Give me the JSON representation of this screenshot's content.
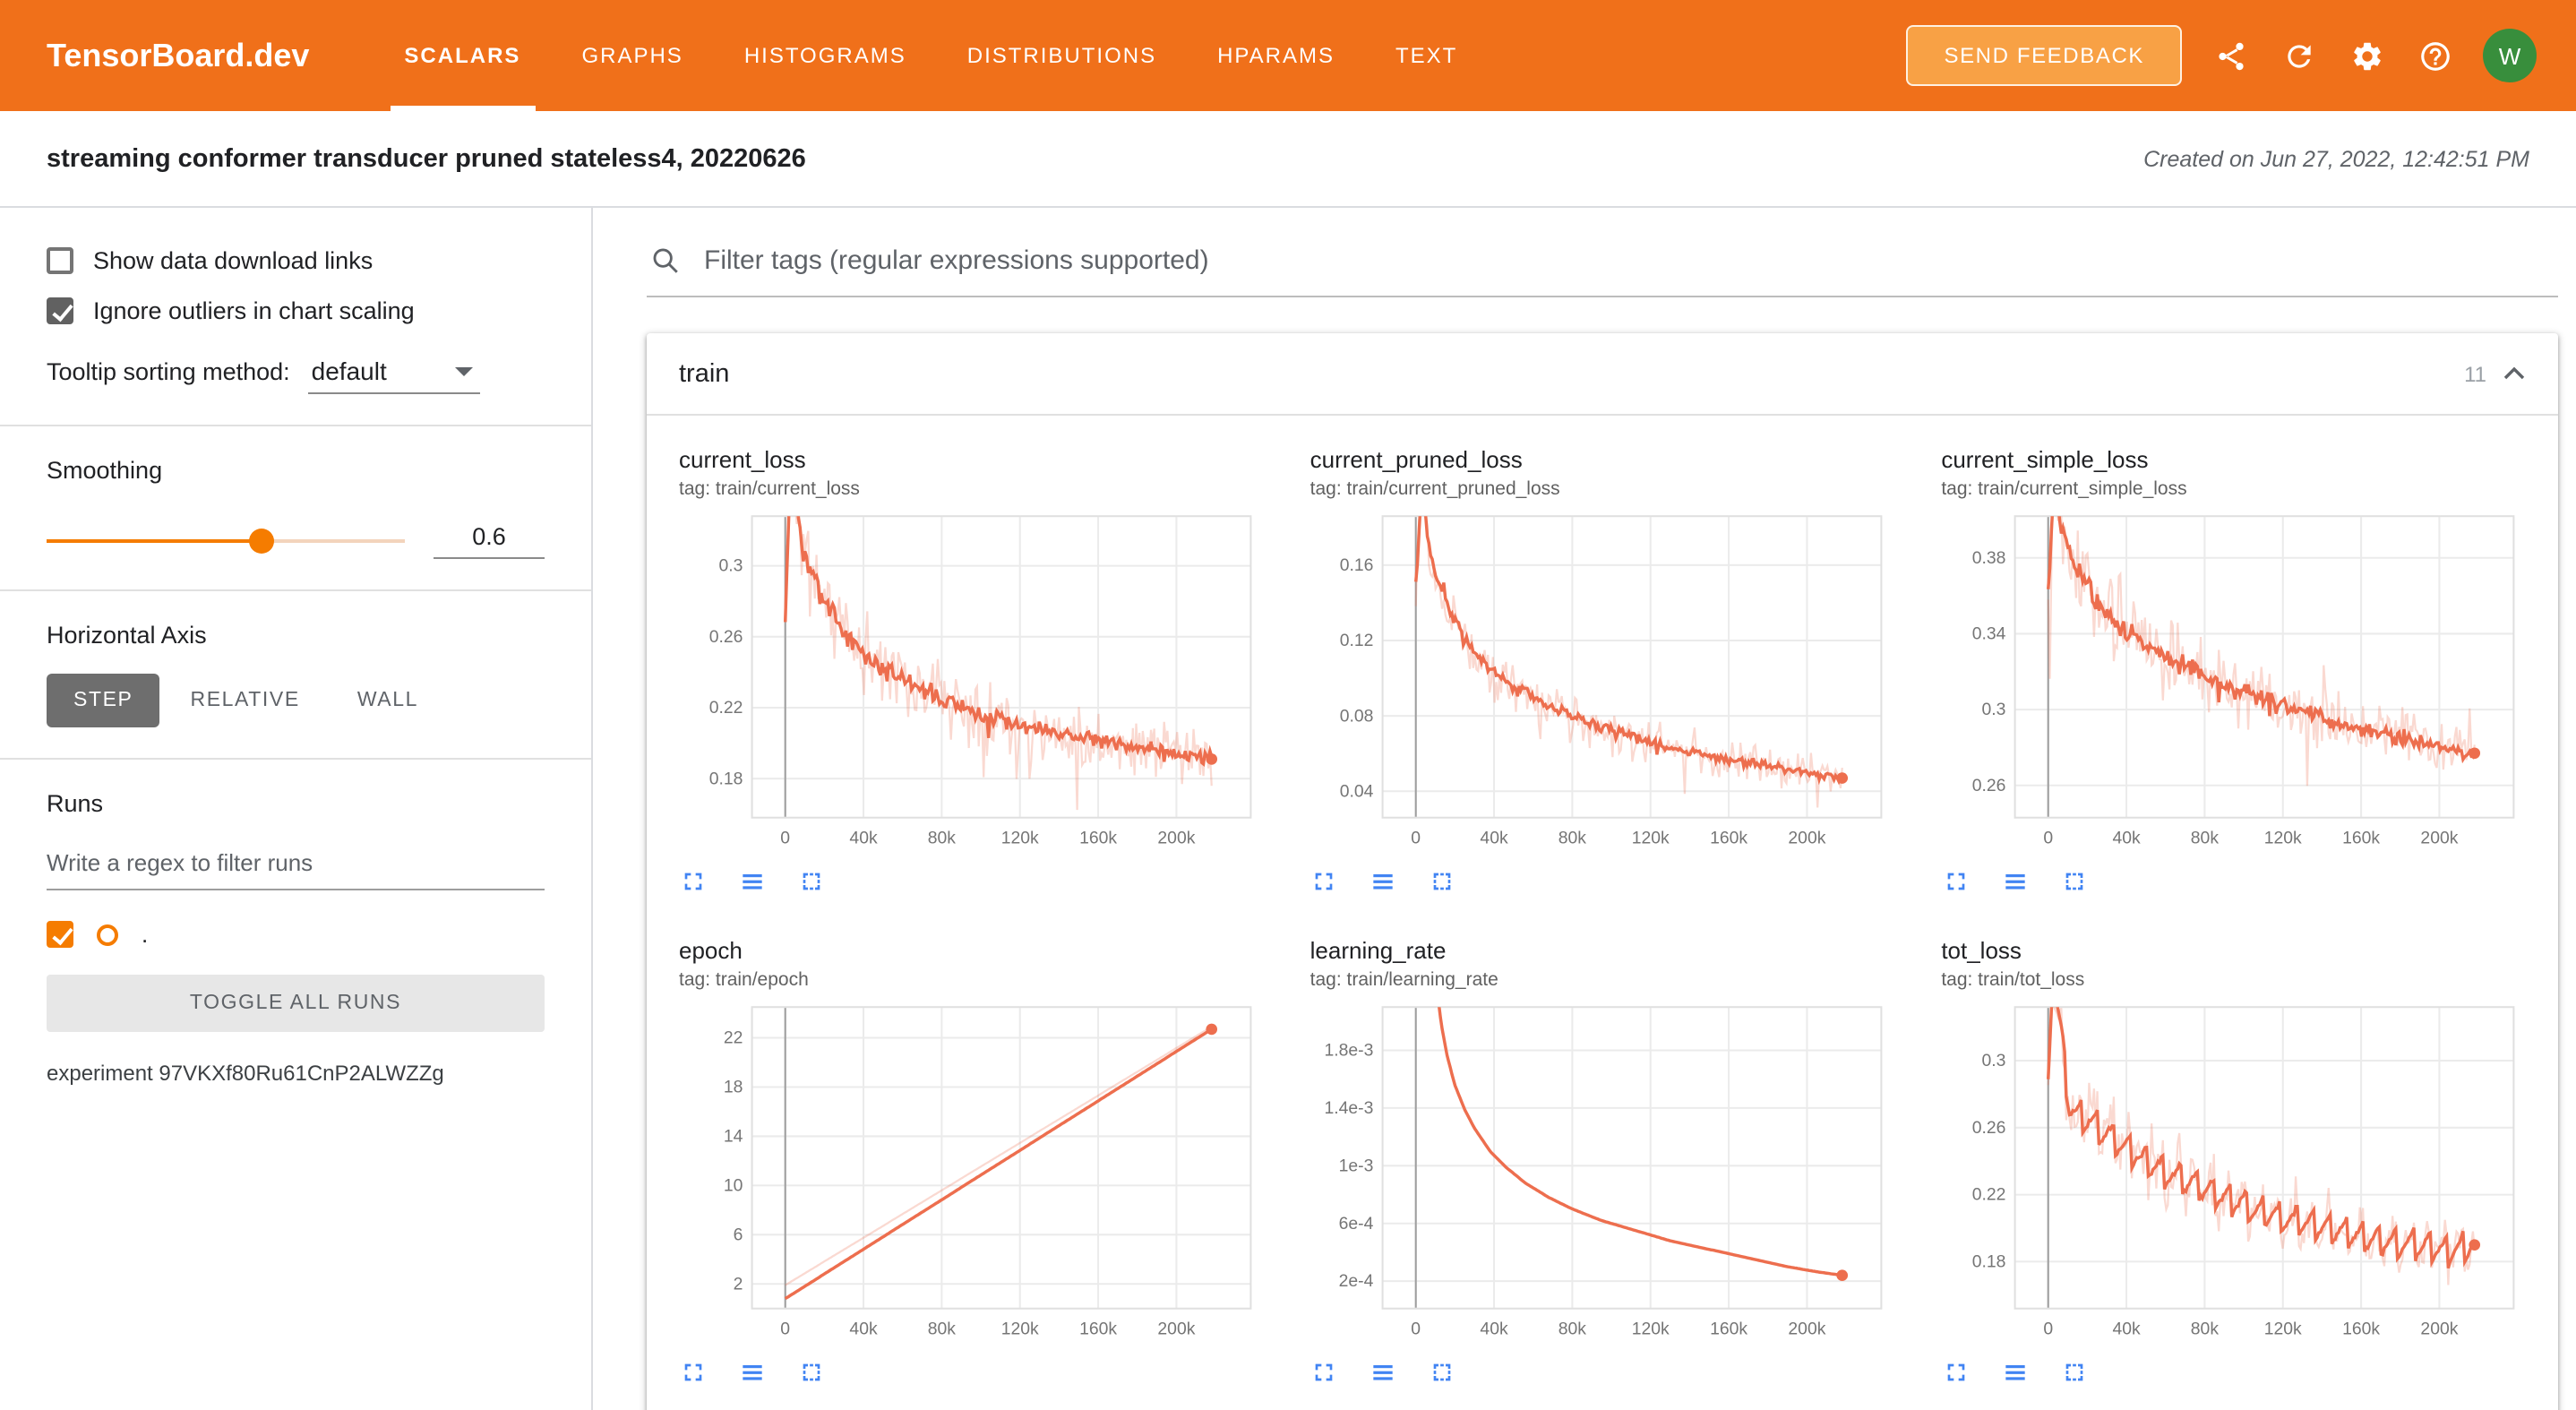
{
  "colors": {
    "header_bg": "#f0701a",
    "feedback_bg": "#f8a145",
    "accent": "#f57c00",
    "line": "#ed6e4e",
    "icon_blue": "#4184f3",
    "avatar_bg": "#388e3c"
  },
  "header": {
    "logo": "TensorBoard.dev",
    "tabs": [
      {
        "label": "SCALARS",
        "active": true
      },
      {
        "label": "GRAPHS",
        "active": false
      },
      {
        "label": "HISTOGRAMS",
        "active": false
      },
      {
        "label": "DISTRIBUTIONS",
        "active": false
      },
      {
        "label": "HPARAMS",
        "active": false
      },
      {
        "label": "TEXT",
        "active": false
      }
    ],
    "send_feedback": "SEND FEEDBACK",
    "avatar": "W"
  },
  "subheader": {
    "title": "streaming conformer transducer pruned stateless4, 20220626",
    "created": "Created on Jun 27, 2022, 12:42:51 PM"
  },
  "sidebar": {
    "show_download": {
      "label": "Show data download links",
      "checked": false
    },
    "ignore_outliers": {
      "label": "Ignore outliers in chart scaling",
      "checked": true
    },
    "tooltip_sort": {
      "label": "Tooltip sorting method:",
      "value": "default"
    },
    "smoothing": {
      "label": "Smoothing",
      "value": "0.6"
    },
    "haxis": {
      "label": "Horizontal Axis",
      "options": [
        "STEP",
        "RELATIVE",
        "WALL"
      ],
      "selected": "STEP"
    },
    "runs": {
      "label": "Runs",
      "filter_placeholder": "Write a regex to filter runs",
      "run_name": ".",
      "run_checked": true,
      "toggle_all": "TOGGLE ALL RUNS",
      "experiment": "experiment 97VKXf80Ru61CnP2ALWZZg"
    }
  },
  "main": {
    "filter_placeholder": "Filter tags (regular expressions supported)",
    "card": {
      "title": "train",
      "count": "11"
    }
  },
  "chart_data": [
    {
      "type": "line",
      "name": "current_loss",
      "tag": "tag: train/current_loss",
      "x_ticks": [
        0,
        40000,
        80000,
        120000,
        160000,
        200000
      ],
      "x_tick_labels": [
        "0",
        "40k",
        "80k",
        "120k",
        "160k",
        "200k"
      ],
      "x_range": [
        -17000,
        238000
      ],
      "y_ticks": [
        0.18,
        0.22,
        0.26,
        0.3
      ],
      "y_tick_labels": [
        "0.18",
        "0.22",
        "0.26",
        "0.3"
      ],
      "y_range": [
        0.158,
        0.328
      ],
      "smoothed": {
        "points": [
          [
            0,
            0.27
          ],
          [
            3000,
            0.37
          ],
          [
            6000,
            0.33
          ],
          [
            10000,
            0.305
          ],
          [
            16000,
            0.288
          ],
          [
            24000,
            0.272
          ],
          [
            32000,
            0.26
          ],
          [
            40000,
            0.251
          ],
          [
            52000,
            0.241
          ],
          [
            64000,
            0.233
          ],
          [
            76000,
            0.227
          ],
          [
            88000,
            0.221
          ],
          [
            100000,
            0.217
          ],
          [
            115000,
            0.212
          ],
          [
            130000,
            0.208
          ],
          [
            145000,
            0.204
          ],
          [
            160000,
            0.201
          ],
          [
            175000,
            0.199
          ],
          [
            190000,
            0.196
          ],
          [
            205000,
            0.193
          ],
          [
            218000,
            0.191
          ]
        ],
        "noise": 0.0065,
        "seed": 3
      },
      "raw": {
        "noise": 0.026,
        "seed": 11
      },
      "end_dot": true
    },
    {
      "type": "line",
      "name": "current_pruned_loss",
      "tag": "tag: train/current_pruned_loss",
      "x_ticks": [
        0,
        40000,
        80000,
        120000,
        160000,
        200000
      ],
      "x_tick_labels": [
        "0",
        "40k",
        "80k",
        "120k",
        "160k",
        "200k"
      ],
      "x_range": [
        -17000,
        238000
      ],
      "y_ticks": [
        0.04,
        0.08,
        0.12,
        0.16
      ],
      "y_tick_labels": [
        "0.04",
        "0.08",
        "0.12",
        "0.16"
      ],
      "y_range": [
        0.026,
        0.186
      ],
      "smoothed": {
        "points": [
          [
            0,
            0.15
          ],
          [
            3000,
            0.2
          ],
          [
            6000,
            0.175
          ],
          [
            10000,
            0.155
          ],
          [
            16000,
            0.138
          ],
          [
            24000,
            0.122
          ],
          [
            32000,
            0.111
          ],
          [
            40000,
            0.103
          ],
          [
            52000,
            0.094
          ],
          [
            64000,
            0.087
          ],
          [
            76000,
            0.081
          ],
          [
            88000,
            0.076
          ],
          [
            100000,
            0.072
          ],
          [
            115000,
            0.067
          ],
          [
            130000,
            0.063
          ],
          [
            145000,
            0.06
          ],
          [
            160000,
            0.057
          ],
          [
            175000,
            0.054
          ],
          [
            190000,
            0.052
          ],
          [
            205000,
            0.049
          ],
          [
            218000,
            0.047
          ]
        ],
        "noise": 0.004,
        "seed": 4
      },
      "raw": {
        "noise": 0.016,
        "seed": 12
      },
      "end_dot": true
    },
    {
      "type": "line",
      "name": "current_simple_loss",
      "tag": "tag: train/current_simple_loss",
      "x_ticks": [
        0,
        40000,
        80000,
        120000,
        160000,
        200000
      ],
      "x_tick_labels": [
        "0",
        "40k",
        "80k",
        "120k",
        "160k",
        "200k"
      ],
      "x_range": [
        -17000,
        238000
      ],
      "y_ticks": [
        0.26,
        0.3,
        0.34,
        0.38
      ],
      "y_tick_labels": [
        "0.26",
        "0.3",
        "0.34",
        "0.38"
      ],
      "y_range": [
        0.243,
        0.402
      ],
      "smoothed": {
        "points": [
          [
            0,
            0.36
          ],
          [
            3000,
            0.42
          ],
          [
            6000,
            0.4
          ],
          [
            10000,
            0.385
          ],
          [
            16000,
            0.372
          ],
          [
            24000,
            0.359
          ],
          [
            32000,
            0.349
          ],
          [
            40000,
            0.342
          ],
          [
            52000,
            0.333
          ],
          [
            64000,
            0.326
          ],
          [
            76000,
            0.32
          ],
          [
            88000,
            0.314
          ],
          [
            100000,
            0.31
          ],
          [
            115000,
            0.304
          ],
          [
            130000,
            0.299
          ],
          [
            145000,
            0.294
          ],
          [
            160000,
            0.29
          ],
          [
            175000,
            0.287
          ],
          [
            190000,
            0.283
          ],
          [
            205000,
            0.279
          ],
          [
            218000,
            0.277
          ]
        ],
        "noise": 0.0065,
        "seed": 5
      },
      "raw": {
        "noise": 0.024,
        "seed": 13
      },
      "end_dot": true
    },
    {
      "type": "line",
      "name": "epoch",
      "tag": "tag: train/epoch",
      "x_ticks": [
        0,
        40000,
        80000,
        120000,
        160000,
        200000
      ],
      "x_tick_labels": [
        "0",
        "40k",
        "80k",
        "120k",
        "160k",
        "200k"
      ],
      "x_range": [
        -17000,
        238000
      ],
      "y_ticks": [
        2,
        6,
        10,
        14,
        18,
        22
      ],
      "y_tick_labels": [
        "2",
        "6",
        "10",
        "14",
        "18",
        "22"
      ],
      "y_range": [
        0,
        24.5
      ],
      "smoothed": {
        "points": [
          [
            0,
            0.8
          ],
          [
            218000,
            22.7
          ]
        ],
        "noise": 0,
        "seed": 1
      },
      "raw": {
        "points": [
          [
            0,
            1.9
          ],
          [
            218000,
            22.9
          ]
        ],
        "noise": 0,
        "seed": 2
      },
      "end_dot": true
    },
    {
      "type": "line",
      "name": "learning_rate",
      "tag": "tag: train/learning_rate",
      "x_ticks": [
        0,
        40000,
        80000,
        120000,
        160000,
        200000
      ],
      "x_tick_labels": [
        "0",
        "40k",
        "80k",
        "120k",
        "160k",
        "200k"
      ],
      "x_range": [
        -17000,
        238000
      ],
      "y_ticks": [
        0.0002,
        0.0006,
        0.001,
        0.0014,
        0.0018
      ],
      "y_tick_labels": [
        "2e-4",
        "6e-4",
        "1e-3",
        "1.4e-3",
        "1.8e-3"
      ],
      "y_range": [
        1e-05,
        0.0021
      ],
      "smoothed": {
        "points": [
          [
            0,
            0.006
          ],
          [
            4000,
            0.0042
          ],
          [
            7000,
            0.003
          ],
          [
            9000,
            0.00252
          ],
          [
            11000,
            0.0022
          ],
          [
            13000,
            0.00198
          ],
          [
            16000,
            0.00176
          ],
          [
            20000,
            0.00156
          ],
          [
            25000,
            0.00139
          ],
          [
            30000,
            0.00126
          ],
          [
            38000,
            0.0011
          ],
          [
            46000,
            0.00099
          ],
          [
            56000,
            0.00088
          ],
          [
            68000,
            0.00078
          ],
          [
            80000,
            0.0007
          ],
          [
            95000,
            0.00062
          ],
          [
            110000,
            0.00056
          ],
          [
            130000,
            0.00048
          ],
          [
            150000,
            0.00042
          ],
          [
            170000,
            0.00036
          ],
          [
            190000,
            0.0003
          ],
          [
            205000,
            0.000265
          ],
          [
            218000,
            0.00024
          ]
        ],
        "noise": 0,
        "seed": 1
      },
      "raw": null,
      "end_dot": true
    },
    {
      "type": "line",
      "name": "tot_loss",
      "tag": "tag: train/tot_loss",
      "x_ticks": [
        0,
        40000,
        80000,
        120000,
        160000,
        200000
      ],
      "x_tick_labels": [
        "0",
        "40k",
        "80k",
        "120k",
        "160k",
        "200k"
      ],
      "x_range": [
        -17000,
        238000
      ],
      "y_ticks": [
        0.18,
        0.22,
        0.26,
        0.3
      ],
      "y_tick_labels": [
        "0.18",
        "0.22",
        "0.26",
        "0.3"
      ],
      "y_range": [
        0.152,
        0.332
      ],
      "smoothed": {
        "points": [
          [
            0,
            0.3
          ],
          [
            2000,
            0.345
          ],
          [
            5000,
            0.33
          ],
          [
            8000,
            0.3
          ],
          [
            11000,
            0.27
          ],
          [
            15000,
            0.268
          ],
          [
            20000,
            0.265
          ],
          [
            28000,
            0.258
          ],
          [
            36000,
            0.251
          ],
          [
            44000,
            0.245
          ],
          [
            54000,
            0.238
          ],
          [
            64000,
            0.231
          ],
          [
            76000,
            0.225
          ],
          [
            88000,
            0.219
          ],
          [
            100000,
            0.214
          ],
          [
            115000,
            0.208
          ],
          [
            130000,
            0.203
          ],
          [
            145000,
            0.199
          ],
          [
            160000,
            0.195
          ],
          [
            175000,
            0.192
          ],
          [
            190000,
            0.189
          ],
          [
            205000,
            0.186
          ],
          [
            218000,
            0.19
          ]
        ],
        "noise": 0.002,
        "seed": 6,
        "saw_period": 8500,
        "saw_amp": 0.01
      },
      "raw": {
        "noise": 0.018,
        "seed": 14,
        "saw_period": 8500,
        "saw_amp": 0.012
      },
      "end_dot": true
    }
  ]
}
